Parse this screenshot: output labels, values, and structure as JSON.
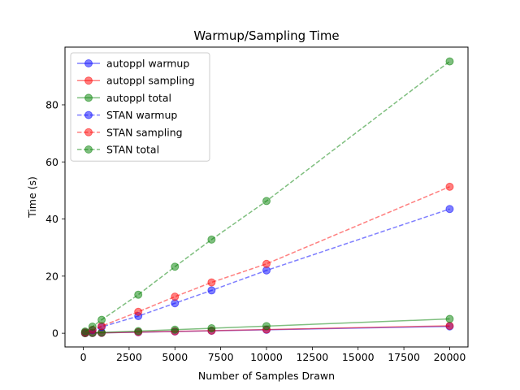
{
  "chart_data": {
    "type": "line",
    "title": "Warmup/Sampling Time",
    "xlabel": "Number of Samples Drawn",
    "ylabel": "Time (s)",
    "xlim": [
      -1000,
      21000
    ],
    "ylim": [
      -4.8,
      100.2
    ],
    "xticks": [
      0,
      2500,
      5000,
      7500,
      10000,
      12500,
      15000,
      17500,
      20000
    ],
    "xtick_labels": [
      "0",
      "2500",
      "5000",
      "7500",
      "10000",
      "12500",
      "15000",
      "17500",
      "20000"
    ],
    "yticks": [
      0,
      20,
      40,
      60,
      80
    ],
    "ytick_labels": [
      "0",
      "20",
      "40",
      "60",
      "80"
    ],
    "legend_position": "top-left",
    "x": [
      100,
      500,
      1000,
      3000,
      5000,
      7000,
      10000,
      20000
    ],
    "series": [
      {
        "name": "autoppl warmup",
        "color": "#0000ff",
        "style": "solid",
        "values": [
          0.01,
          0.06,
          0.12,
          0.35,
          0.6,
          0.85,
          1.2,
          2.4
        ]
      },
      {
        "name": "autoppl sampling",
        "color": "#ff0000",
        "style": "solid",
        "values": [
          0.01,
          0.07,
          0.13,
          0.4,
          0.65,
          0.9,
          1.3,
          2.6
        ]
      },
      {
        "name": "autoppl total",
        "color": "#008000",
        "style": "solid",
        "values": [
          0.02,
          0.13,
          0.25,
          0.75,
          1.25,
          1.75,
          2.5,
          5.0
        ]
      },
      {
        "name": "STAN warmup",
        "color": "#0000ff",
        "style": "dashed",
        "values": [
          0.3,
          1.1,
          2.2,
          6.0,
          10.5,
          15.0,
          22.0,
          43.5
        ]
      },
      {
        "name": "STAN sampling",
        "color": "#ff0000",
        "style": "dashed",
        "values": [
          0.3,
          1.2,
          2.5,
          7.5,
          12.8,
          17.8,
          24.3,
          51.3
        ]
      },
      {
        "name": "STAN total",
        "color": "#008000",
        "style": "dashed",
        "values": [
          0.6,
          2.3,
          4.7,
          13.5,
          23.3,
          32.8,
          46.3,
          95.2
        ]
      }
    ]
  }
}
